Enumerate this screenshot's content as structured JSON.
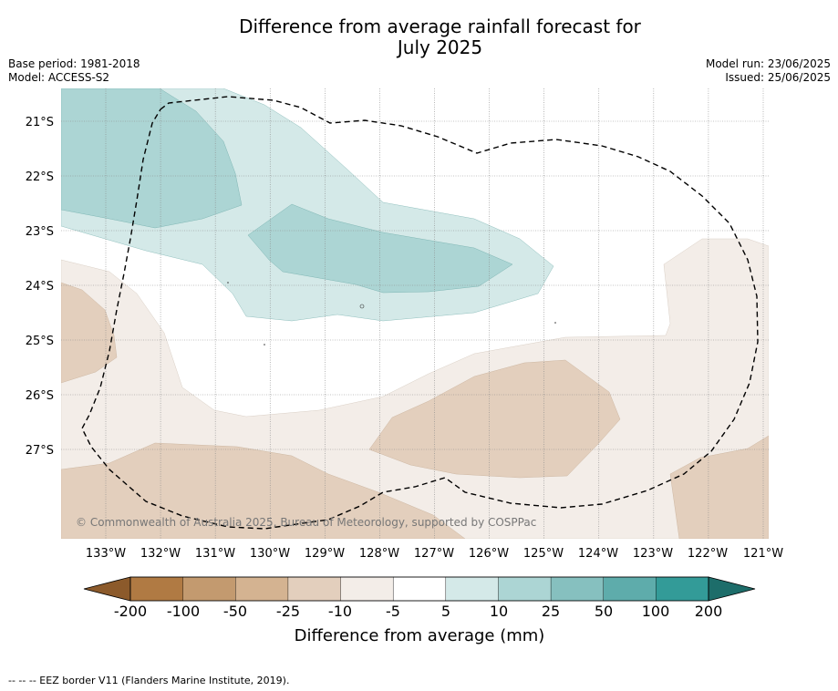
{
  "title_line1": "Difference from average rainfall forecast for",
  "title_line2": "July 2025",
  "meta_left": {
    "base_period": "Base period: 1981-2018",
    "model": "Model: ACCESS-S2"
  },
  "meta_right": {
    "model_run": "Model run: 23/06/2025",
    "issued": "Issued: 25/06/2025"
  },
  "map": {
    "lat_ticks": [
      "21°S",
      "22°S",
      "23°S",
      "24°S",
      "25°S",
      "26°S",
      "27°S"
    ],
    "lon_ticks": [
      "133°W",
      "132°W",
      "131°W",
      "130°W",
      "129°W",
      "128°W",
      "127°W",
      "126°W",
      "125°W",
      "124°W",
      "123°W",
      "122°W",
      "121°W"
    ],
    "copyright": "© Commonwealth of Australia 2025, Bureau of Meteorology, supported by COSPPac"
  },
  "legend": {
    "tick_labels": [
      "-200",
      "-100",
      "-50",
      "-25",
      "-10",
      "-5",
      "5",
      "10",
      "25",
      "50",
      "100",
      "200"
    ],
    "colors": [
      "#8c5a2b",
      "#b07a43",
      "#c39a6f",
      "#d4b391",
      "#e3cfbd",
      "#f3ede8",
      "#ffffff",
      "#d4e9e8",
      "#acd5d4",
      "#86c0bf",
      "#5eacab",
      "#339b98",
      "#1d6d6a"
    ],
    "label": "Difference from average (mm)"
  },
  "footer": "--  --  -- EEZ border V11 (Flanders Marine Institute, 2019)."
}
